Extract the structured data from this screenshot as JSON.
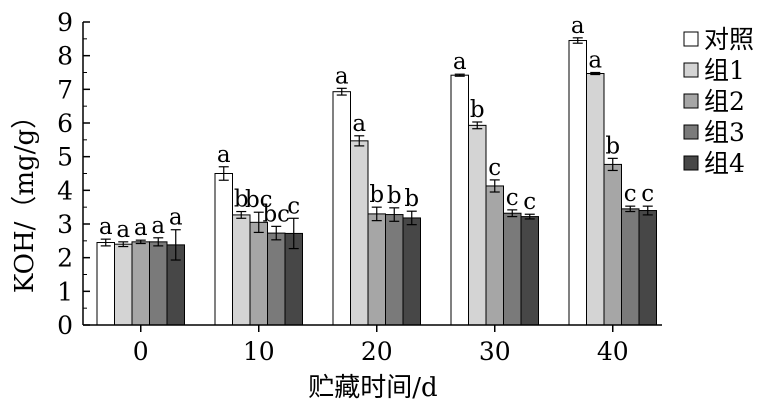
{
  "chart_data": {
    "type": "bar",
    "xlabel": "贮藏时间/d",
    "ylabel": "KOH/（mg/g）",
    "categories": [
      "0",
      "10",
      "20",
      "30",
      "40"
    ],
    "ylim": [
      0,
      9
    ],
    "yticks": [
      "0",
      "1",
      "2",
      "3",
      "4",
      "5",
      "6",
      "7",
      "8",
      "9"
    ],
    "grid": false,
    "legend_position": "right",
    "series": [
      {
        "name": "对照",
        "color": "#ffffff",
        "values": [
          2.45,
          4.5,
          6.93,
          7.42,
          8.45
        ],
        "errors": [
          0.1,
          0.2,
          0.1,
          0.03,
          0.08
        ],
        "letters": [
          "a",
          "a",
          "a",
          "a",
          "a"
        ]
      },
      {
        "name": "组1",
        "color": "#d4d4d4",
        "values": [
          2.4,
          3.27,
          5.47,
          5.93,
          7.47
        ],
        "errors": [
          0.07,
          0.1,
          0.15,
          0.1,
          0.03
        ],
        "letters": [
          "a",
          "b",
          "a",
          "b",
          "a"
        ]
      },
      {
        "name": "组2",
        "color": "#a6a6a6",
        "values": [
          2.47,
          3.05,
          3.3,
          4.13,
          4.77
        ],
        "errors": [
          0.05,
          0.3,
          0.2,
          0.18,
          0.18
        ],
        "letters": [
          "a",
          "bc",
          "b",
          "c",
          "b"
        ]
      },
      {
        "name": "组3",
        "color": "#7a7a7a",
        "values": [
          2.47,
          2.73,
          3.28,
          3.32,
          3.45
        ],
        "errors": [
          0.12,
          0.2,
          0.2,
          0.1,
          0.08
        ],
        "letters": [
          "a",
          "bc",
          "b",
          "c",
          "c"
        ]
      },
      {
        "name": "组4",
        "color": "#474747",
        "values": [
          2.38,
          2.72,
          3.18,
          3.22,
          3.4
        ],
        "errors": [
          0.45,
          0.45,
          0.2,
          0.07,
          0.13
        ],
        "letters": [
          "a",
          "c",
          "b",
          "c",
          "c"
        ]
      }
    ]
  }
}
